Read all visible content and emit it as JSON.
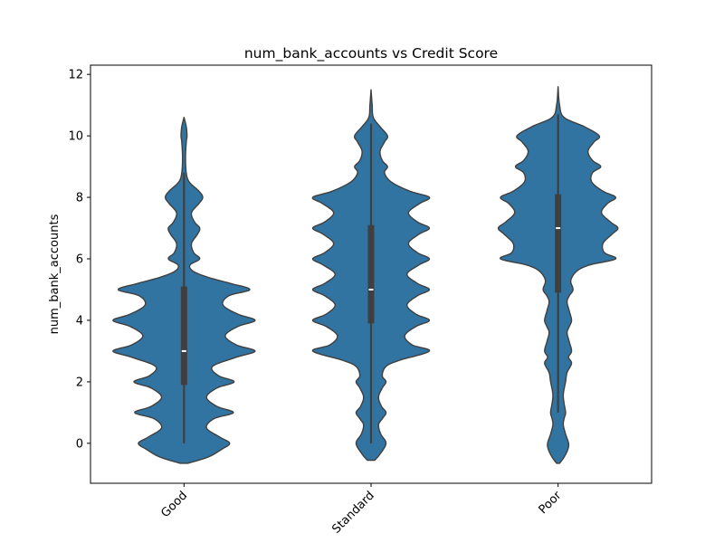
{
  "chart_data": {
    "type": "violin",
    "title": "num_bank_accounts vs Credit Score",
    "xlabel": "",
    "ylabel": "num_bank_accounts",
    "categories": [
      "Good",
      "Standard",
      "Poor"
    ],
    "ylim": [
      -1.3,
      12.3
    ],
    "yticks": [
      0,
      2,
      4,
      6,
      8,
      10,
      12
    ],
    "grid": false,
    "legend": "none",
    "colors": {
      "fill": "#3274a1",
      "edge": "#3f3f3f",
      "box": "#3f3f3f",
      "median": "#ffffff"
    },
    "violins": [
      {
        "category": "Good",
        "range": [
          -0.65,
          10.6
        ],
        "box": {
          "q1": 1.9,
          "median": 3.0,
          "q3": 5.1,
          "whisker_low": 0.0,
          "whisker_high": 8.8
        },
        "density_profile": [
          [
            -0.65,
            0.05
          ],
          [
            -0.45,
            0.32
          ],
          [
            -0.2,
            0.5
          ],
          [
            0.0,
            0.61
          ],
          [
            0.2,
            0.48
          ],
          [
            0.5,
            0.3
          ],
          [
            0.8,
            0.4
          ],
          [
            1.0,
            0.66
          ],
          [
            1.2,
            0.44
          ],
          [
            1.5,
            0.3
          ],
          [
            1.8,
            0.44
          ],
          [
            2.0,
            0.67
          ],
          [
            2.2,
            0.46
          ],
          [
            2.5,
            0.38
          ],
          [
            2.8,
            0.7
          ],
          [
            3.0,
            0.95
          ],
          [
            3.2,
            0.7
          ],
          [
            3.5,
            0.55
          ],
          [
            3.8,
            0.72
          ],
          [
            4.0,
            0.95
          ],
          [
            4.2,
            0.72
          ],
          [
            4.5,
            0.52
          ],
          [
            4.8,
            0.6
          ],
          [
            5.0,
            0.88
          ],
          [
            5.2,
            0.62
          ],
          [
            5.4,
            0.32
          ],
          [
            5.6,
            0.12
          ],
          [
            5.8,
            0.08
          ],
          [
            6.0,
            0.21
          ],
          [
            6.2,
            0.13
          ],
          [
            6.5,
            0.1
          ],
          [
            6.8,
            0.18
          ],
          [
            7.0,
            0.21
          ],
          [
            7.2,
            0.14
          ],
          [
            7.5,
            0.1
          ],
          [
            7.8,
            0.2
          ],
          [
            8.0,
            0.25
          ],
          [
            8.2,
            0.2
          ],
          [
            8.5,
            0.07
          ],
          [
            8.8,
            0.03
          ],
          [
            9.3,
            0.02
          ],
          [
            9.8,
            0.03
          ],
          [
            10.0,
            0.04
          ],
          [
            10.3,
            0.03
          ],
          [
            10.6,
            0.0
          ]
        ]
      },
      {
        "category": "Standard",
        "range": [
          -0.55,
          11.5
        ],
        "box": {
          "q1": 3.9,
          "median": 5.0,
          "q3": 7.1,
          "whisker_low": 0.0,
          "whisker_high": 10.4
        },
        "density_profile": [
          [
            -0.55,
            0.05
          ],
          [
            -0.35,
            0.12
          ],
          [
            0.0,
            0.2
          ],
          [
            0.3,
            0.13
          ],
          [
            0.6,
            0.1
          ],
          [
            0.8,
            0.15
          ],
          [
            1.0,
            0.2
          ],
          [
            1.2,
            0.14
          ],
          [
            1.5,
            0.1
          ],
          [
            1.8,
            0.15
          ],
          [
            2.0,
            0.2
          ],
          [
            2.2,
            0.15
          ],
          [
            2.5,
            0.2
          ],
          [
            2.7,
            0.38
          ],
          [
            3.0,
            0.78
          ],
          [
            3.2,
            0.55
          ],
          [
            3.5,
            0.45
          ],
          [
            3.8,
            0.6
          ],
          [
            4.0,
            0.78
          ],
          [
            4.2,
            0.6
          ],
          [
            4.5,
            0.48
          ],
          [
            4.8,
            0.62
          ],
          [
            5.0,
            0.78
          ],
          [
            5.2,
            0.62
          ],
          [
            5.5,
            0.48
          ],
          [
            5.8,
            0.64
          ],
          [
            6.0,
            0.78
          ],
          [
            6.2,
            0.62
          ],
          [
            6.5,
            0.5
          ],
          [
            6.8,
            0.64
          ],
          [
            7.0,
            0.78
          ],
          [
            7.2,
            0.62
          ],
          [
            7.5,
            0.5
          ],
          [
            7.8,
            0.65
          ],
          [
            8.0,
            0.78
          ],
          [
            8.2,
            0.52
          ],
          [
            8.5,
            0.27
          ],
          [
            8.8,
            0.18
          ],
          [
            9.0,
            0.22
          ],
          [
            9.2,
            0.15
          ],
          [
            9.5,
            0.12
          ],
          [
            9.8,
            0.18
          ],
          [
            10.0,
            0.22
          ],
          [
            10.3,
            0.12
          ],
          [
            10.6,
            0.03
          ],
          [
            11.0,
            0.015
          ],
          [
            11.5,
            0.0
          ]
        ]
      },
      {
        "category": "Poor",
        "range": [
          -0.65,
          11.6
        ],
        "box": {
          "q1": 4.9,
          "median": 7.0,
          "q3": 8.1,
          "whisker_low": 1.0,
          "whisker_high": 10.7
        },
        "density_profile": [
          [
            -0.65,
            0.02
          ],
          [
            -0.45,
            0.08
          ],
          [
            -0.2,
            0.13
          ],
          [
            0.0,
            0.14
          ],
          [
            0.3,
            0.1
          ],
          [
            0.6,
            0.07
          ],
          [
            0.8,
            0.08
          ],
          [
            1.0,
            0.1
          ],
          [
            1.3,
            0.08
          ],
          [
            1.6,
            0.07
          ],
          [
            2.0,
            0.1
          ],
          [
            2.3,
            0.12
          ],
          [
            2.6,
            0.18
          ],
          [
            2.8,
            0.14
          ],
          [
            3.0,
            0.18
          ],
          [
            3.3,
            0.15
          ],
          [
            3.6,
            0.12
          ],
          [
            3.8,
            0.15
          ],
          [
            4.0,
            0.18
          ],
          [
            4.3,
            0.15
          ],
          [
            4.6,
            0.12
          ],
          [
            4.8,
            0.15
          ],
          [
            5.0,
            0.2
          ],
          [
            5.3,
            0.17
          ],
          [
            5.6,
            0.25
          ],
          [
            5.8,
            0.42
          ],
          [
            6.0,
            0.77
          ],
          [
            6.2,
            0.62
          ],
          [
            6.5,
            0.6
          ],
          [
            6.8,
            0.72
          ],
          [
            7.0,
            0.8
          ],
          [
            7.2,
            0.7
          ],
          [
            7.5,
            0.58
          ],
          [
            7.8,
            0.66
          ],
          [
            8.0,
            0.77
          ],
          [
            8.2,
            0.6
          ],
          [
            8.5,
            0.45
          ],
          [
            8.8,
            0.46
          ],
          [
            9.0,
            0.57
          ],
          [
            9.2,
            0.46
          ],
          [
            9.5,
            0.4
          ],
          [
            9.8,
            0.48
          ],
          [
            10.0,
            0.55
          ],
          [
            10.3,
            0.35
          ],
          [
            10.6,
            0.08
          ],
          [
            11.0,
            0.02
          ],
          [
            11.6,
            0.0
          ]
        ]
      }
    ]
  }
}
